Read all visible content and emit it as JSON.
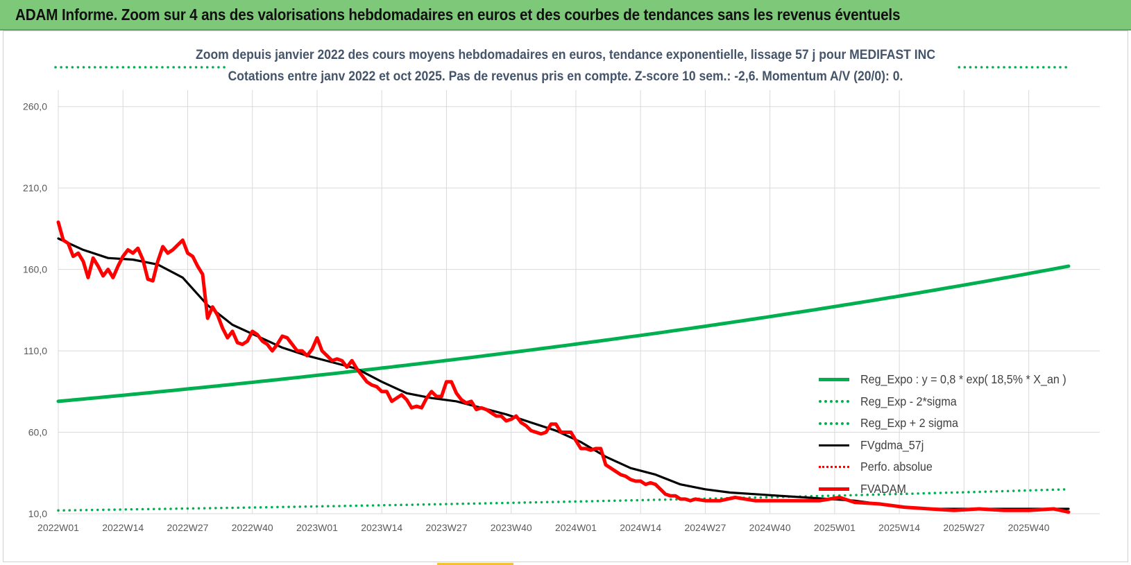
{
  "banner": {
    "title": "ADAM Informe. Zoom sur 4 ans des valorisations hebdomadaires en euros et des courbes de tendances sans les revenus éventuels"
  },
  "colors": {
    "banner_bg": "#7ec87a",
    "reg_expo": "#00b050",
    "fvgdma": "#000000",
    "fvadam": "#ff0000",
    "perfo": "#ff0000",
    "grid": "#d9d9d9"
  },
  "chart_data": {
    "type": "line",
    "title_line1": "Zoom depuis janvier 2022 des cours moyens hebdomadaires en euros, tendance exponentielle, lissage 57 j pour MEDIFAST INC",
    "title_line2": "Cotations entre janv 2022 et oct 2025. Pas de revenus pris en compte. Z-score 10 sem.: -2,6.  Momentum A/V (20/0): 0.",
    "xlabel": "",
    "ylabel": "",
    "ylim": [
      10,
      285
    ],
    "yticks": [
      "260,0",
      "210,0",
      "160,0",
      "110,0",
      "60,0",
      "10,0"
    ],
    "ytick_values": [
      260,
      210,
      160,
      110,
      60,
      10
    ],
    "xticks": [
      "2022W01",
      "2022W14",
      "2022W27",
      "2022W40",
      "2023W01",
      "2023W14",
      "2023W27",
      "2023W40",
      "2024W01",
      "2024W14",
      "2024W27",
      "2024W40",
      "2025W01",
      "2025W14",
      "2025W27",
      "2025W40"
    ],
    "xtick_weeks": [
      0,
      13,
      26,
      39,
      52,
      65,
      78,
      91,
      104,
      117,
      130,
      143,
      156,
      169,
      182,
      195
    ],
    "x_range_weeks": [
      0,
      203
    ],
    "series": [
      {
        "name": "Reg_Expo : y = 0,8 * exp( 18,5% *  X_an )",
        "style": "solid-thick",
        "color": "#00b050",
        "x": [
          0,
          203
        ],
        "values": [
          79.0,
          162.0
        ],
        "curve": "exponential"
      },
      {
        "name": "Reg_Exp - 2*sigma",
        "style": "dotted",
        "color": "#00b050",
        "x": [
          0,
          203
        ],
        "values": [
          12.0,
          25.0
        ],
        "curve": "exponential"
      },
      {
        "name": "Reg_Exp + 2 sigma",
        "style": "dotted",
        "color": "#00b050",
        "x": [
          0,
          203
        ],
        "values": [
          296.0,
          296.0
        ],
        "clip_top": true
      },
      {
        "name": "FVgdma_57j",
        "style": "solid",
        "color": "#000000",
        "x": [
          0,
          5,
          10,
          15,
          20,
          25,
          30,
          35,
          40,
          45,
          50,
          55,
          60,
          65,
          70,
          75,
          80,
          85,
          90,
          95,
          100,
          105,
          110,
          115,
          120,
          125,
          130,
          135,
          140,
          145,
          150,
          155,
          160,
          165,
          170,
          175,
          180,
          185,
          190,
          195,
          203
        ],
        "values": [
          179,
          172,
          167,
          166,
          163,
          155,
          138,
          126,
          119,
          112,
          107,
          103,
          99,
          91,
          84,
          81,
          79,
          75,
          71,
          66,
          61,
          54,
          45,
          38,
          34,
          28,
          25,
          23,
          22,
          21,
          20,
          19,
          18,
          16,
          14,
          13,
          13,
          13,
          13,
          13,
          13
        ]
      },
      {
        "name": "Perfo. absolue",
        "style": "dotted",
        "color": "#ff0000",
        "x": [],
        "values": []
      },
      {
        "name": "FVADAM",
        "style": "solid-thick",
        "color": "#ff0000",
        "x": [
          0,
          1,
          2,
          3,
          4,
          5,
          6,
          7,
          8,
          9,
          10,
          11,
          12,
          13,
          14,
          15,
          16,
          17,
          18,
          19,
          20,
          21,
          22,
          23,
          24,
          25,
          26,
          27,
          28,
          29,
          30,
          31,
          32,
          33,
          34,
          35,
          36,
          37,
          38,
          39,
          40,
          41,
          42,
          43,
          44,
          45,
          46,
          47,
          48,
          49,
          50,
          51,
          52,
          53,
          54,
          55,
          56,
          57,
          58,
          59,
          60,
          61,
          62,
          63,
          64,
          65,
          66,
          67,
          68,
          69,
          70,
          71,
          72,
          73,
          74,
          75,
          76,
          77,
          78,
          79,
          80,
          81,
          82,
          83,
          84,
          85,
          86,
          87,
          88,
          89,
          90,
          91,
          92,
          93,
          94,
          95,
          96,
          97,
          98,
          99,
          100,
          101,
          102,
          103,
          104,
          105,
          106,
          107,
          108,
          109,
          110,
          111,
          112,
          113,
          114,
          115,
          116,
          117,
          118,
          119,
          120,
          121,
          122,
          123,
          124,
          125,
          126,
          127,
          128,
          130,
          133,
          136,
          140,
          145,
          150,
          153,
          155,
          157,
          160,
          165,
          170,
          175,
          180,
          185,
          190,
          195,
          200,
          203
        ],
        "values": [
          189,
          178,
          176,
          168,
          170,
          165,
          155,
          167,
          162,
          156,
          160,
          155,
          162,
          168,
          172,
          170,
          173,
          166,
          154,
          153,
          165,
          174,
          170,
          172,
          175,
          178,
          170,
          168,
          162,
          157,
          130,
          137,
          132,
          124,
          118,
          122,
          115,
          114,
          116,
          122,
          120,
          116,
          114,
          110,
          114,
          119,
          118,
          114,
          110,
          110,
          107,
          111,
          118,
          110,
          107,
          104,
          105,
          104,
          100,
          104,
          99,
          95,
          91,
          89,
          88,
          85,
          85,
          79,
          81,
          83,
          80,
          75,
          76,
          75,
          81,
          85,
          82,
          82,
          91,
          91,
          84,
          80,
          78,
          79,
          74,
          75,
          74,
          72,
          70,
          70,
          67,
          68,
          70,
          66,
          64,
          61,
          60,
          59,
          60,
          65,
          65,
          60,
          60,
          60,
          55,
          50,
          50,
          49,
          50,
          50,
          40,
          38,
          36,
          34,
          33,
          31,
          30,
          30,
          28,
          29,
          28,
          25,
          22,
          21,
          21,
          19,
          19,
          18,
          19,
          18,
          18,
          20,
          18,
          18,
          18,
          18,
          19,
          20,
          17,
          16,
          14,
          13,
          12,
          13,
          12,
          12,
          13,
          11
        ]
      }
    ],
    "legend_position": "bottom-right"
  },
  "legend": {
    "items": [
      {
        "label": "Reg_Expo : y = 0,8 * exp( 18,5% *  X_an )"
      },
      {
        "label": "Reg_Exp - 2*sigma"
      },
      {
        "label": "Reg_Exp + 2 sigma"
      },
      {
        "label": "FVgdma_57j"
      },
      {
        "label": "Perfo. absolue"
      },
      {
        "label": "FVADAM"
      }
    ]
  }
}
